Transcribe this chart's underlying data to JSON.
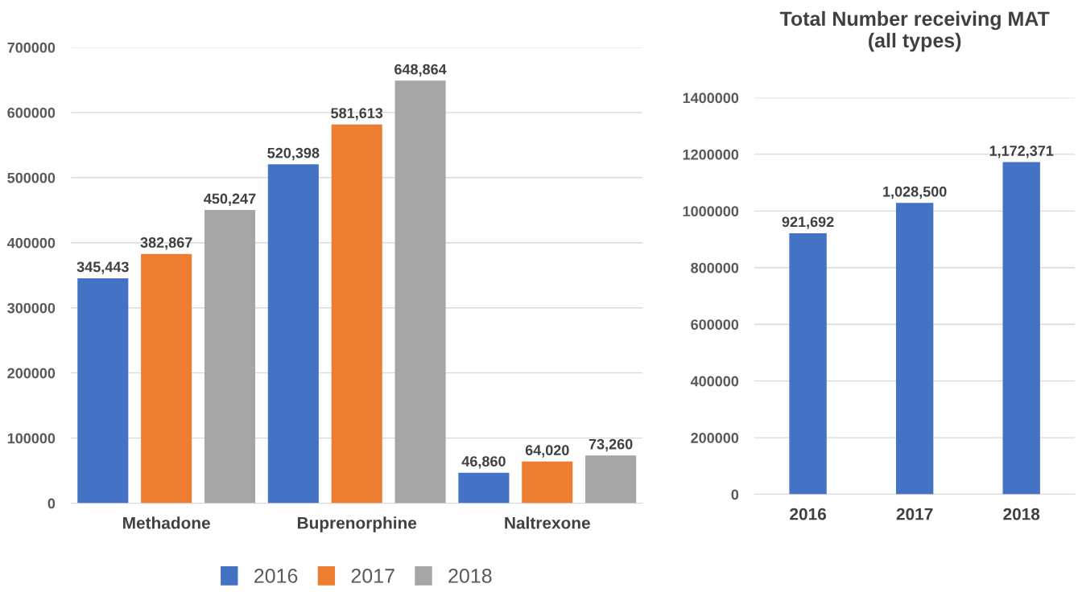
{
  "chart_data": [
    {
      "type": "bar",
      "categories": [
        "Methadone",
        "Buprenorphine",
        "Naltrexone"
      ],
      "series": [
        {
          "name": "2016",
          "color": "#4472c4",
          "values": [
            345443,
            520398,
            46860
          ],
          "value_labels": [
            "345,443",
            "520,398",
            "46,860"
          ]
        },
        {
          "name": "2017",
          "color": "#ed7d31",
          "values": [
            382867,
            581613,
            64020
          ],
          "value_labels": [
            "382,867",
            "581,613",
            "64,020"
          ]
        },
        {
          "name": "2018",
          "color": "#a5a5a5",
          "values": [
            450247,
            648864,
            73260
          ],
          "value_labels": [
            "450,247",
            "648,864",
            "73,260"
          ]
        }
      ],
      "ylim": [
        0,
        700000
      ],
      "yticks": [
        0,
        100000,
        200000,
        300000,
        400000,
        500000,
        600000,
        700000
      ],
      "grid": "y",
      "legend": "bottom"
    },
    {
      "type": "bar",
      "title": "Total Number receiving MAT\n(all types)",
      "categories": [
        "2016",
        "2017",
        "2018"
      ],
      "series": [
        {
          "color": "#4472c4",
          "values": [
            921692,
            1028500,
            1172371
          ],
          "value_labels": [
            "921,692",
            "1,028,500",
            "1,172,371"
          ]
        }
      ],
      "ylim": [
        0,
        1400000
      ],
      "yticks": [
        0,
        200000,
        400000,
        600000,
        800000,
        1000000,
        1200000,
        1400000
      ],
      "grid": "y",
      "legend": false
    }
  ]
}
